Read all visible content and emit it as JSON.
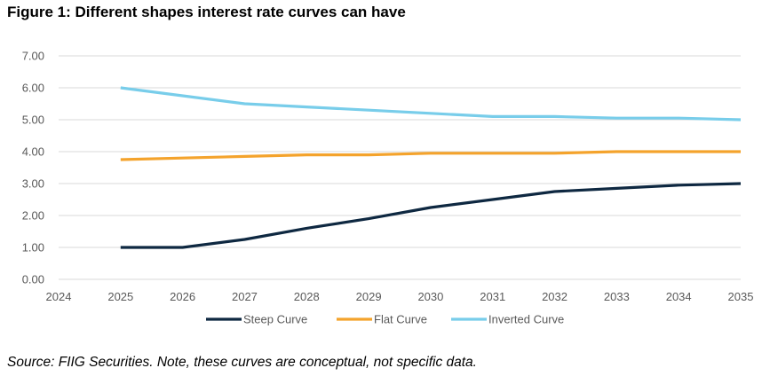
{
  "title": "Figure 1:  Different shapes interest rate curves can have",
  "source_note": "Source:  FIIG Securities.  Note, these curves are conceptual, not specific data.",
  "chart_data": {
    "type": "line",
    "title": "",
    "xlabel": "",
    "ylabel": "",
    "xlim": [
      2024,
      2035
    ],
    "ylim": [
      0,
      7
    ],
    "x_ticks": [
      "2024",
      "2025",
      "2026",
      "2027",
      "2028",
      "2029",
      "2030",
      "2031",
      "2032",
      "2033",
      "2034",
      "2035"
    ],
    "y_ticks": [
      "0.00",
      "1.00",
      "2.00",
      "3.00",
      "4.00",
      "5.00",
      "6.00",
      "7.00"
    ],
    "grid": "horizontal",
    "legend_position": "bottom",
    "x": [
      2025,
      2026,
      2027,
      2028,
      2029,
      2030,
      2031,
      2032,
      2033,
      2034,
      2035
    ],
    "series": [
      {
        "name": "Steep Curve",
        "color": "#0e2841",
        "values": [
          1.0,
          1.0,
          1.25,
          1.6,
          1.9,
          2.25,
          2.5,
          2.75,
          2.85,
          2.95,
          3.0
        ]
      },
      {
        "name": "Flat Curve",
        "color": "#f4a32c",
        "values": [
          3.75,
          3.8,
          3.85,
          3.9,
          3.9,
          3.95,
          3.95,
          3.95,
          4.0,
          4.0,
          4.0
        ]
      },
      {
        "name": "Inverted Curve",
        "color": "#78cdea",
        "values": [
          6.0,
          5.75,
          5.5,
          5.4,
          5.3,
          5.2,
          5.1,
          5.1,
          5.05,
          5.05,
          5.0
        ]
      }
    ]
  }
}
